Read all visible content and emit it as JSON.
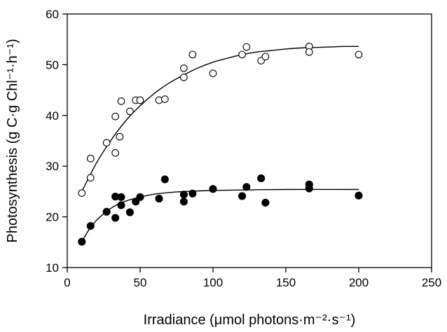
{
  "chart_data": {
    "type": "scatter",
    "title": "",
    "xlabel": "Irradiance (μmol photons·m⁻²·s⁻¹)",
    "ylabel": "Photosynthesis (g C·g Chl⁻¹·h⁻¹)",
    "xlim": [
      0,
      250
    ],
    "ylim": [
      10,
      60
    ],
    "xticks": [
      0,
      50,
      100,
      150,
      200,
      250
    ],
    "yticks": [
      10,
      20,
      30,
      40,
      50,
      60
    ],
    "grid": false,
    "legend": "none",
    "series": [
      {
        "marker": "open-circle",
        "points": [
          [
            10,
            24.7
          ],
          [
            16,
            31.5
          ],
          [
            16,
            27.7
          ],
          [
            27,
            34.6
          ],
          [
            33,
            39.8
          ],
          [
            33,
            32.6
          ],
          [
            36,
            35.8
          ],
          [
            37,
            42.8
          ],
          [
            43,
            40.8
          ],
          [
            47,
            43.0
          ],
          [
            50,
            43.0
          ],
          [
            63,
            43.0
          ],
          [
            67,
            43.2
          ],
          [
            80,
            49.3
          ],
          [
            80,
            47.5
          ],
          [
            86,
            52.0
          ],
          [
            100,
            48.3
          ],
          [
            120,
            52.0
          ],
          [
            123,
            53.5
          ],
          [
            133,
            50.8
          ],
          [
            136,
            51.6
          ],
          [
            166,
            53.6
          ],
          [
            166,
            52.5
          ],
          [
            200,
            52.0
          ]
        ],
        "fit_curve": [
          [
            10,
            25.0
          ],
          [
            20,
            30.6
          ],
          [
            30,
            35.1
          ],
          [
            40,
            38.9
          ],
          [
            50,
            41.9
          ],
          [
            60,
            44.4
          ],
          [
            70,
            46.4
          ],
          [
            80,
            48.0
          ],
          [
            90,
            49.4
          ],
          [
            100,
            50.5
          ],
          [
            110,
            51.3
          ],
          [
            120,
            52.0
          ],
          [
            130,
            52.5
          ],
          [
            140,
            52.8
          ],
          [
            150,
            53.1
          ],
          [
            160,
            53.3
          ],
          [
            170,
            53.4
          ],
          [
            180,
            53.5
          ],
          [
            190,
            53.6
          ],
          [
            200,
            53.6
          ]
        ]
      },
      {
        "marker": "filled-circle",
        "points": [
          [
            10,
            15.1
          ],
          [
            16,
            18.2
          ],
          [
            27,
            21.0
          ],
          [
            33,
            24.0
          ],
          [
            33,
            19.8
          ],
          [
            37,
            22.3
          ],
          [
            37,
            23.9
          ],
          [
            43,
            20.9
          ],
          [
            47,
            23.0
          ],
          [
            50,
            23.9
          ],
          [
            63,
            23.6
          ],
          [
            67,
            27.4
          ],
          [
            80,
            24.4
          ],
          [
            80,
            23.0
          ],
          [
            86,
            24.6
          ],
          [
            100,
            25.5
          ],
          [
            120,
            24.1
          ],
          [
            123,
            25.9
          ],
          [
            133,
            27.6
          ],
          [
            136,
            22.8
          ],
          [
            166,
            26.4
          ],
          [
            166,
            25.6
          ],
          [
            200,
            24.2
          ]
        ],
        "fit_curve": [
          [
            10,
            15.1
          ],
          [
            15,
            17.5
          ],
          [
            20,
            19.3
          ],
          [
            25,
            20.6
          ],
          [
            30,
            21.7
          ],
          [
            35,
            22.5
          ],
          [
            40,
            23.1
          ],
          [
            50,
            23.9
          ],
          [
            60,
            24.5
          ],
          [
            70,
            24.8
          ],
          [
            80,
            25.0
          ],
          [
            100,
            25.2
          ],
          [
            120,
            25.3
          ],
          [
            150,
            25.4
          ],
          [
            200,
            25.4
          ]
        ]
      }
    ]
  }
}
